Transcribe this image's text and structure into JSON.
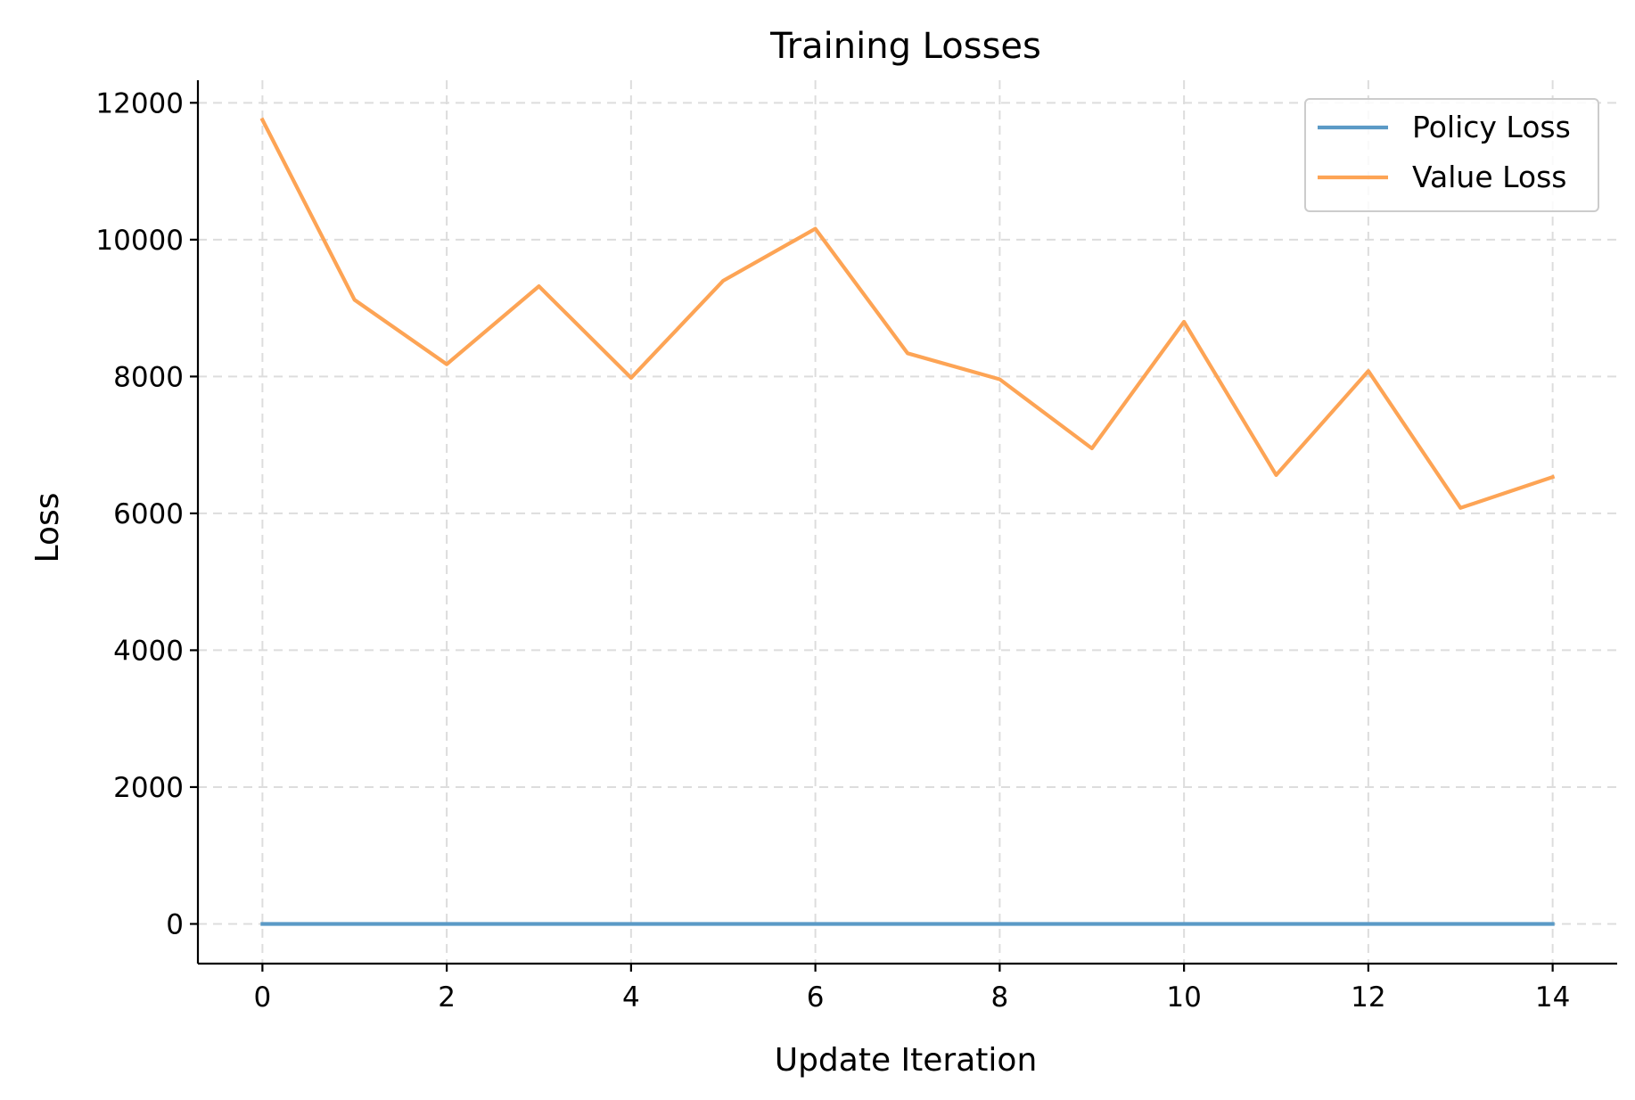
{
  "chart_data": {
    "type": "line",
    "title": "Training Losses",
    "xlabel": "Update Iteration",
    "ylabel": "Loss",
    "x": [
      0,
      1,
      2,
      3,
      4,
      5,
      6,
      7,
      8,
      9,
      10,
      11,
      12,
      13,
      14
    ],
    "xlim": [
      -0.7,
      14.7
    ],
    "ylim": [
      -580,
      12330
    ],
    "x_ticks": [
      0,
      2,
      4,
      6,
      8,
      10,
      12,
      14
    ],
    "x_tick_labels": [
      "0",
      "2",
      "4",
      "6",
      "8",
      "10",
      "12",
      "14"
    ],
    "y_ticks": [
      0,
      2000,
      4000,
      6000,
      8000,
      10000,
      12000
    ],
    "y_tick_labels": [
      "0",
      "2000",
      "4000",
      "6000",
      "8000",
      "10000",
      "12000"
    ],
    "grid": true,
    "legend_position": "top-right",
    "series": [
      {
        "name": "Policy Loss",
        "color": "#5b9ac6",
        "values": [
          0,
          0,
          0,
          0,
          0,
          0,
          0,
          0,
          0,
          0,
          0,
          0,
          0,
          0,
          0
        ]
      },
      {
        "name": "Value Loss",
        "color": "#fda455",
        "values": [
          11750,
          9120,
          8180,
          9320,
          7980,
          9400,
          10160,
          8340,
          7960,
          6950,
          8800,
          6560,
          8080,
          6080,
          6530
        ]
      }
    ]
  }
}
